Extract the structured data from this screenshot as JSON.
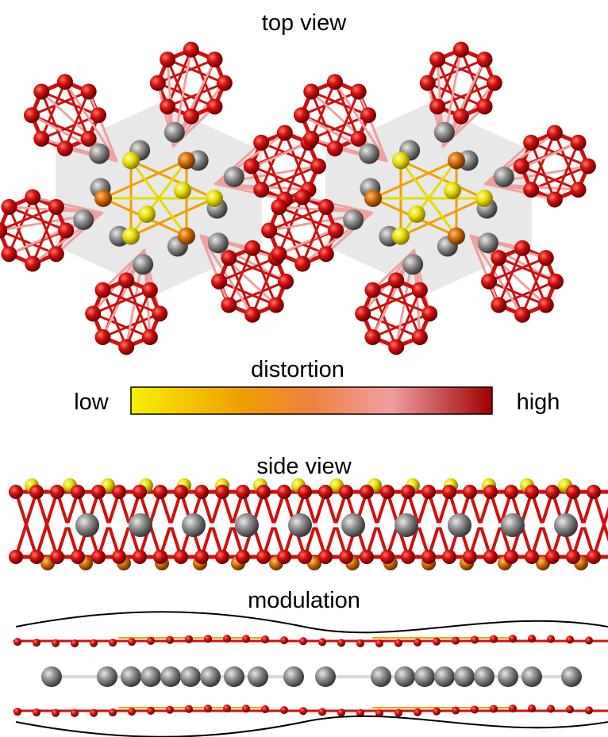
{
  "panels": {
    "top_view": {
      "title": "top view"
    },
    "colorbar": {
      "title": "distortion",
      "low_label": "low",
      "high_label": "high"
    },
    "side_view": {
      "title": "side view"
    },
    "modulation": {
      "title": "modulation"
    }
  }
}
